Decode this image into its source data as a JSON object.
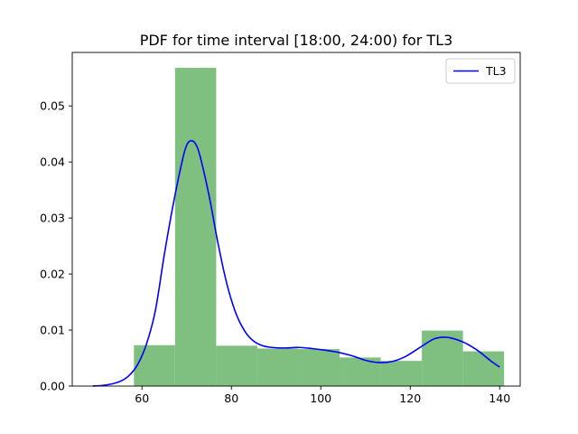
{
  "chart_data": {
    "type": "bar",
    "title": "PDF for time interval [18:00, 24:00) for TL3",
    "xlabel": "",
    "ylabel": "",
    "xlim": [
      44.4,
      144.6
    ],
    "ylim": [
      0,
      0.05955
    ],
    "grid": false,
    "legend_position": "top-right",
    "x_ticks": [
      60,
      80,
      100,
      120,
      140
    ],
    "x_tick_labels": [
      "60",
      "80",
      "100",
      "120",
      "140"
    ],
    "y_ticks": [
      0,
      0.01,
      0.02,
      0.03,
      0.04,
      0.05
    ],
    "y_tick_labels": [
      "0.00",
      "0.01",
      "0.02",
      "0.03",
      "0.04",
      "0.05"
    ],
    "histogram": {
      "color": "#7fbf7f",
      "bins": [
        {
          "start": 58.2,
          "end": 67.4,
          "value": 0.0073
        },
        {
          "start": 67.4,
          "end": 76.6,
          "value": 0.0568
        },
        {
          "start": 76.6,
          "end": 85.8,
          "value": 0.0072
        },
        {
          "start": 85.8,
          "end": 95.0,
          "value": 0.0067
        },
        {
          "start": 95.0,
          "end": 104.2,
          "value": 0.0066
        },
        {
          "start": 104.2,
          "end": 113.4,
          "value": 0.0051
        },
        {
          "start": 113.4,
          "end": 122.6,
          "value": 0.0045
        },
        {
          "start": 122.6,
          "end": 131.8,
          "value": 0.0099
        },
        {
          "start": 131.8,
          "end": 141.0,
          "value": 0.0062
        }
      ]
    },
    "series": [
      {
        "name": "TL3",
        "color": "#0000ff",
        "x": [
          49,
          52,
          55,
          57,
          59,
          61,
          63,
          65,
          67,
          69,
          70,
          71,
          72,
          73,
          75,
          77,
          79,
          81,
          83,
          85,
          87,
          89,
          92,
          95,
          98,
          101,
          104,
          107,
          110,
          113,
          116,
          119,
          122,
          125,
          127,
          129,
          132,
          135,
          138,
          140
        ],
        "y": [
          0.0,
          0.0002,
          0.0008,
          0.0018,
          0.0038,
          0.0075,
          0.0135,
          0.0235,
          0.0325,
          0.0402,
          0.043,
          0.0438,
          0.0432,
          0.041,
          0.034,
          0.0255,
          0.0182,
          0.013,
          0.0098,
          0.008,
          0.0072,
          0.0069,
          0.0068,
          0.0069,
          0.0067,
          0.0064,
          0.006,
          0.0054,
          0.0046,
          0.0042,
          0.0044,
          0.0053,
          0.0068,
          0.0083,
          0.0087,
          0.0086,
          0.0078,
          0.0064,
          0.0045,
          0.0034
        ]
      }
    ]
  }
}
